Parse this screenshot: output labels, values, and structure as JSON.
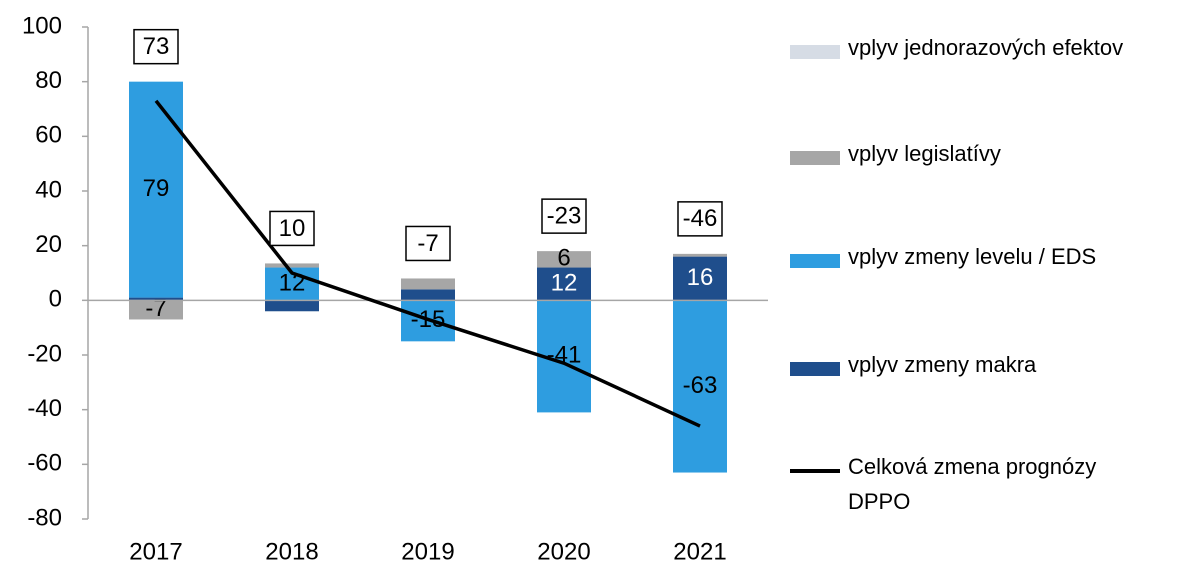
{
  "chart_data": {
    "type": "stacked_bar_line",
    "categories": [
      "2017",
      "2018",
      "2019",
      "2020",
      "2021"
    ],
    "series": [
      {
        "name": "vplyv jednorazových efektov",
        "color": "#d6dce5",
        "values": [
          0,
          0,
          0,
          0,
          0
        ],
        "value_labels": [
          null,
          null,
          null,
          null,
          null
        ]
      },
      {
        "name": "vplyv legislatívy",
        "color": "#a6a6a6",
        "values": [
          -7,
          1.5,
          4,
          6,
          1
        ],
        "value_labels": [
          "-7",
          null,
          null,
          "6",
          null
        ]
      },
      {
        "name": "vplyv zmeny levelu / EDS",
        "color": "#2e9de0",
        "values": [
          79,
          12,
          -15,
          -41,
          -63
        ],
        "value_labels": [
          "79",
          "12",
          "-15",
          "-41",
          "-63"
        ]
      },
      {
        "name": "vplyv zmeny makra",
        "color": "#1f4e8c",
        "label_color": "#ffffff",
        "values": [
          1,
          -4,
          4,
          12,
          16
        ],
        "value_labels": [
          null,
          null,
          null,
          "12",
          "16"
        ]
      },
      {
        "name": "Celková zmena prognózy DPPO",
        "type": "line",
        "color": "#000000",
        "values": [
          73,
          10,
          -7,
          -23,
          -46
        ]
      }
    ],
    "ylim": [
      -80,
      100
    ],
    "yticks": [
      -80,
      -60,
      -40,
      -20,
      0,
      20,
      40,
      60,
      80,
      100
    ]
  }
}
